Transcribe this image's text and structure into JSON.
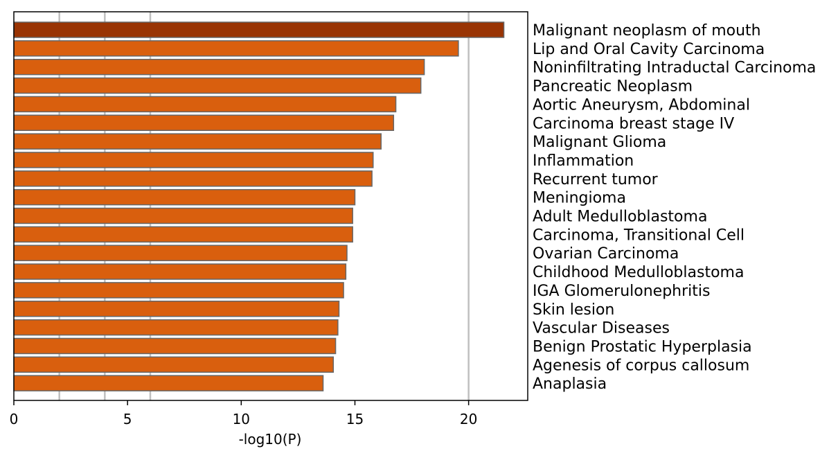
{
  "chart_data": {
    "type": "bar",
    "orientation": "horizontal",
    "title": "",
    "xlabel": "-log10(P)",
    "ylabel": "",
    "xlim": [
      0,
      22.6
    ],
    "xticks": [
      0,
      5,
      10,
      15,
      20
    ],
    "gridlines": [
      2,
      4,
      6,
      20
    ],
    "categories": [
      "Malignant neoplasm of mouth",
      "Lip and Oral Cavity Carcinoma",
      "Noninfiltrating Intraductal Carcinoma",
      "Pancreatic Neoplasm",
      "Aortic Aneurysm, Abdominal",
      "Carcinoma breast stage IV",
      "Malignant Glioma",
      "Inflammation",
      "Recurrent tumor",
      "Meningioma",
      "Adult Medulloblastoma",
      "Carcinoma, Transitional Cell",
      "Ovarian Carcinoma",
      "Childhood Medulloblastoma",
      "IGA Glomerulonephritis",
      "Skin lesion",
      "Vascular Diseases",
      "Benign Prostatic Hyperplasia",
      "Agenesis of corpus callosum",
      "Anaplasia"
    ],
    "values": [
      21.55,
      19.55,
      18.05,
      17.9,
      16.8,
      16.7,
      16.15,
      15.8,
      15.75,
      15.0,
      14.9,
      14.9,
      14.65,
      14.6,
      14.5,
      14.3,
      14.25,
      14.15,
      14.05,
      13.6
    ],
    "colors": {
      "highlight": "#993404",
      "bar": "#d95f0e",
      "bar_edge": "#666666",
      "grid": "#bfbfbf"
    }
  }
}
